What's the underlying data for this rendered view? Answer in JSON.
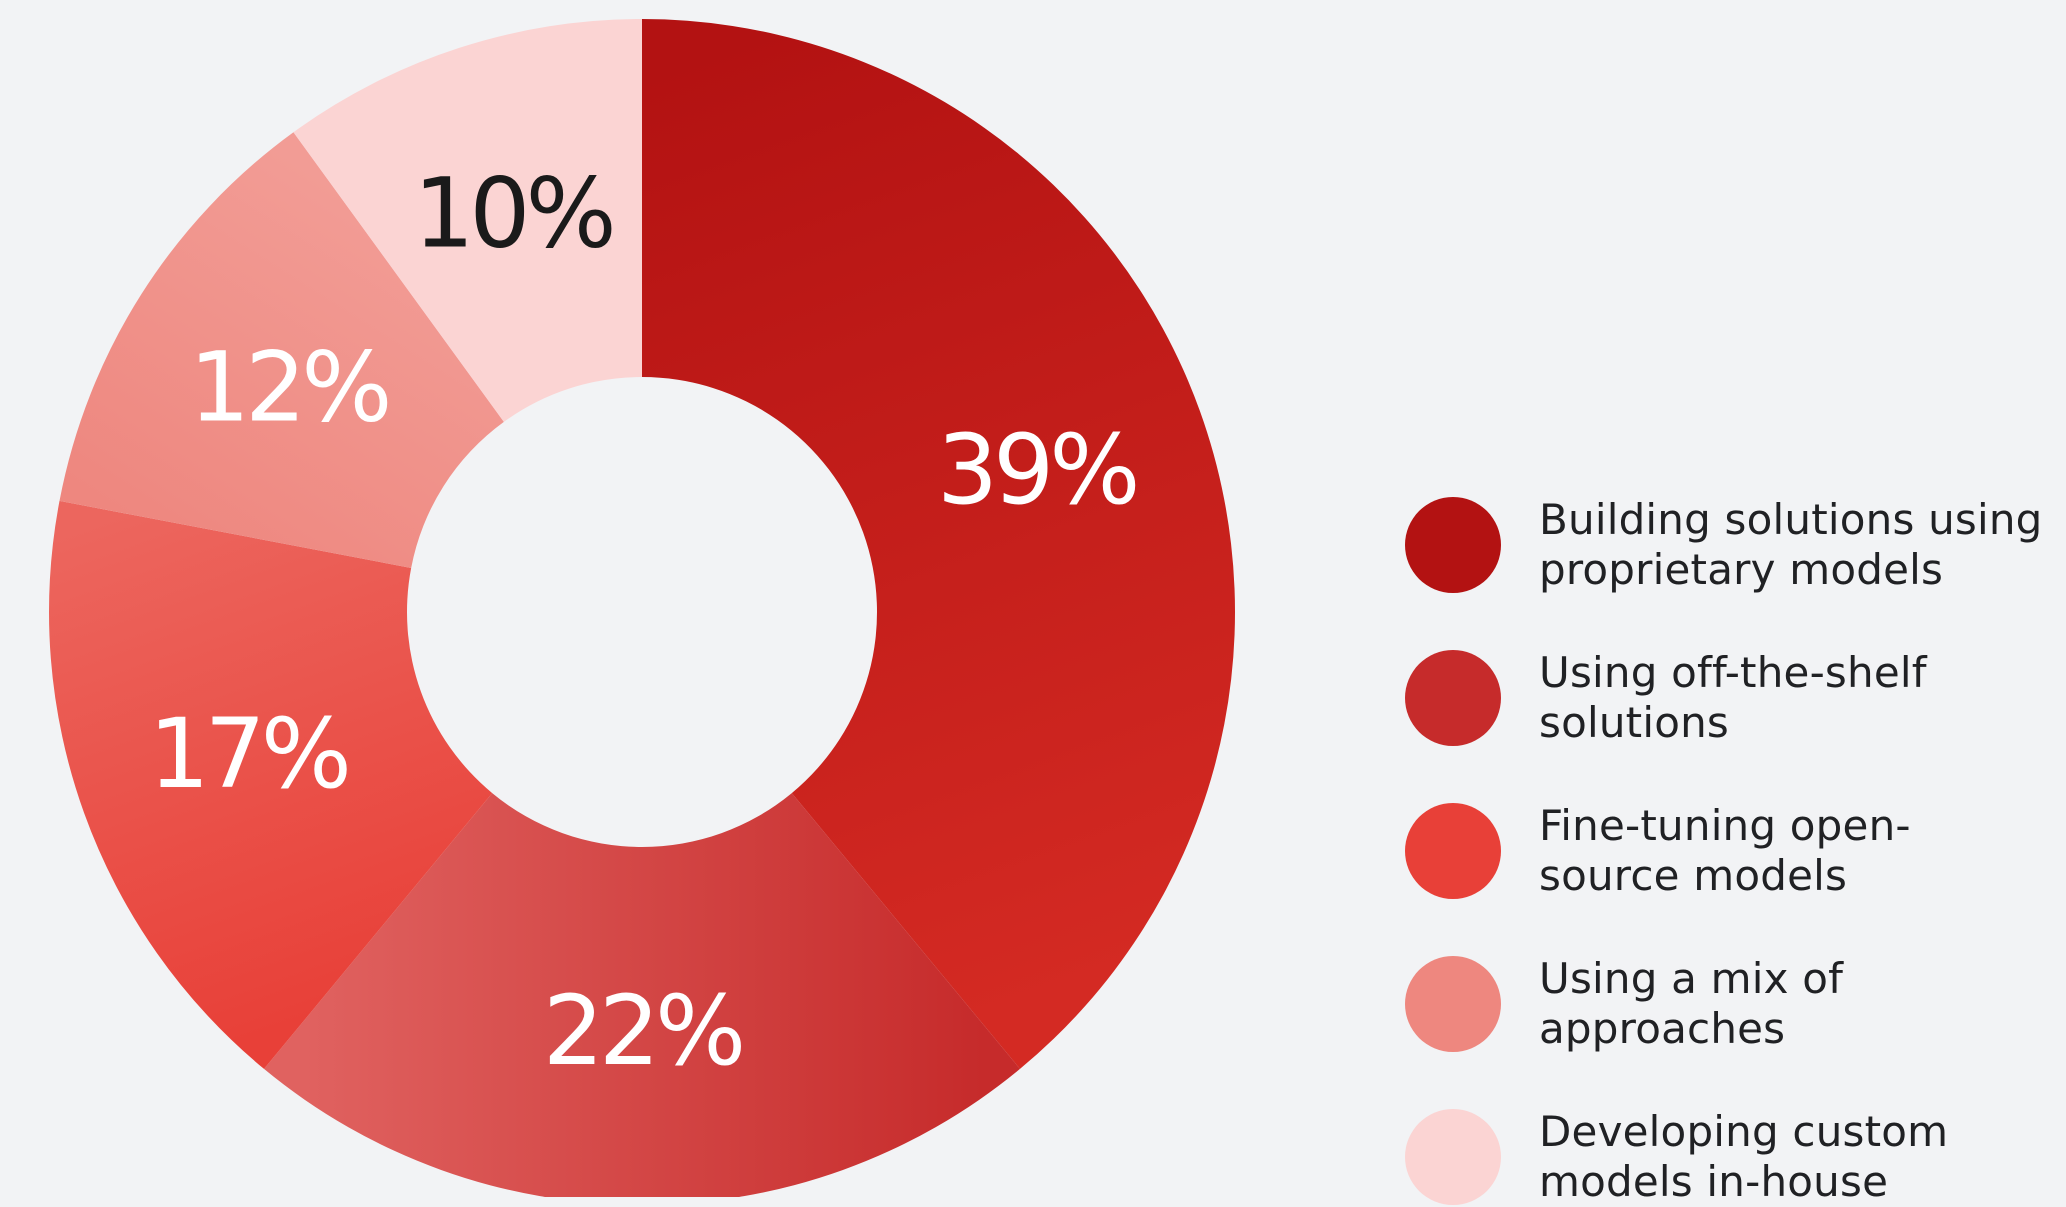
{
  "chart_data": {
    "type": "pie",
    "donut": true,
    "legend_position": "right",
    "slices": [
      {
        "label": "Building solutions using\nproprietary models",
        "value": 39,
        "display": "39%",
        "color": "#b31212",
        "color_end": "#d42a23",
        "label_color": "#ffffff"
      },
      {
        "label": "Using off-the-shelf\nsolutions",
        "value": 22,
        "display": "22%",
        "color": "#c62b2b",
        "color_end": "#e06260",
        "label_color": "#ffffff"
      },
      {
        "label": "Fine-tuning open-\nsource models",
        "value": 17,
        "display": "17%",
        "color": "#e84038",
        "color_end": "#ec665e",
        "label_color": "#ffffff"
      },
      {
        "label": "Using a mix of\napproaches",
        "value": 12,
        "display": "12%",
        "color": "#ee877f",
        "color_end": "#f29c95",
        "label_color": "#ffffff"
      },
      {
        "label": "Developing custom\nmodels in-house",
        "value": 10,
        "display": "10%",
        "color": "#fbd4d3",
        "color_end": "#fbd4d3",
        "label_color": "#1a1a1a"
      }
    ]
  }
}
